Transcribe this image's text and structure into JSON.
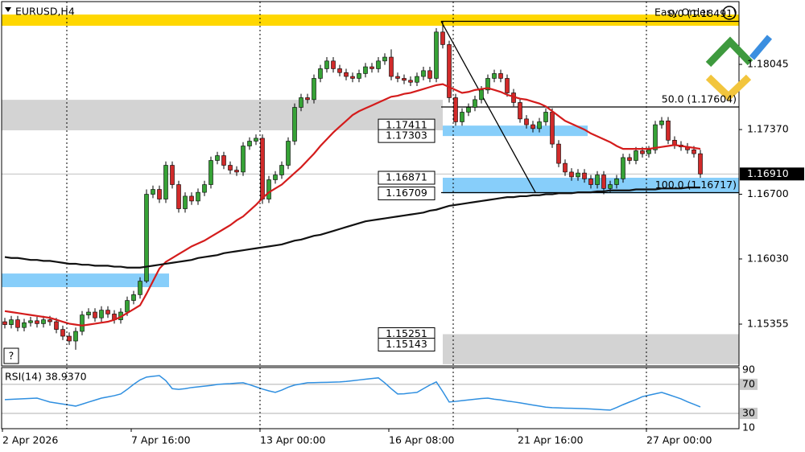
{
  "chart_data": {
    "type": "candlestick",
    "symbol": "EURUSD,H4",
    "corner_text": "Easy Order",
    "up_color": "#36a236",
    "down_color": "#d12a2a",
    "ylim": [
      1.14922,
      1.18695
    ],
    "yticks": [
      1.18045,
      {
        "value": 1.1737,
        "label": "1.17370"
      },
      {
        "value": 1.167,
        "label": "1.16700"
      },
      {
        "value": 1.1603,
        "label": "1.16030"
      },
      1.15355
    ],
    "bid": {
      "value": 1.1691,
      "label": "1.16910"
    },
    "categories": [
      "2 Apr 2026",
      null,
      null,
      null,
      null,
      null,
      null,
      null,
      null,
      null,
      null,
      null,
      null,
      null,
      null,
      null,
      null,
      null,
      null,
      null,
      "7 Apr 16:00",
      null,
      null,
      null,
      null,
      null,
      null,
      null,
      null,
      null,
      null,
      null,
      null,
      null,
      null,
      null,
      null,
      null,
      null,
      null,
      "13 Apr 00:00",
      null,
      null,
      null,
      null,
      null,
      null,
      null,
      null,
      null,
      null,
      null,
      null,
      null,
      null,
      null,
      null,
      null,
      null,
      null,
      "16 Apr 08:00",
      null,
      null,
      null,
      null,
      null,
      null,
      null,
      null,
      null,
      null,
      null,
      null,
      null,
      null,
      null,
      null,
      null,
      null,
      null,
      "21 Apr 16:00",
      null,
      null,
      null,
      null,
      null,
      null,
      null,
      null,
      null,
      null,
      null,
      null,
      null,
      null,
      null,
      null,
      null,
      null,
      null,
      "27 Apr 00:00",
      null,
      null,
      null,
      null,
      null,
      null,
      null,
      null
    ],
    "candles": [
      [
        1.1538,
        1.1542,
        1.1531,
        1.1535
      ],
      [
        1.1535,
        1.1544,
        1.1531,
        1.154
      ],
      [
        1.154,
        1.1544,
        1.1528,
        1.1532
      ],
      [
        1.1532,
        1.1541,
        1.1528,
        1.1537
      ],
      [
        1.1537,
        1.1543,
        1.1533,
        1.1539
      ],
      [
        1.1539,
        1.1543,
        1.1532,
        1.1536
      ],
      [
        1.1536,
        1.1544,
        1.1532,
        1.154
      ],
      [
        1.154,
        1.1544,
        1.1534,
        1.1538
      ],
      [
        1.1538,
        1.1542,
        1.1526,
        1.153
      ],
      [
        1.153,
        1.1534,
        1.1519,
        1.1523
      ],
      [
        1.1523,
        1.1527,
        1.1514,
        1.1518
      ],
      [
        1.1518,
        1.1532,
        1.1509,
        1.1528
      ],
      [
        1.1528,
        1.1549,
        1.1524,
        1.1545
      ],
      [
        1.1545,
        1.1552,
        1.1541,
        1.1548
      ],
      [
        1.1548,
        1.1552,
        1.1538,
        1.1542
      ],
      [
        1.1542,
        1.1554,
        1.1538,
        1.155
      ],
      [
        1.155,
        1.1554,
        1.1542,
        1.1546
      ],
      [
        1.1546,
        1.155,
        1.1536,
        1.154
      ],
      [
        1.154,
        1.1552,
        1.1536,
        1.1548
      ],
      [
        1.1548,
        1.1564,
        1.1544,
        1.156
      ],
      [
        1.156,
        1.157,
        1.1556,
        1.1566
      ],
      [
        1.1566,
        1.1584,
        1.1562,
        1.158
      ],
      [
        1.158,
        1.1675,
        1.1578,
        1.167
      ],
      [
        1.167,
        1.1679,
        1.1666,
        1.1675
      ],
      [
        1.1675,
        1.1679,
        1.1661,
        1.1665
      ],
      [
        1.1665,
        1.1704,
        1.1661,
        1.17
      ],
      [
        1.17,
        1.1704,
        1.1676,
        1.168
      ],
      [
        1.168,
        1.1684,
        1.1651,
        1.1655
      ],
      [
        1.1655,
        1.1672,
        1.1651,
        1.1668
      ],
      [
        1.1668,
        1.1672,
        1.1659,
        1.1663
      ],
      [
        1.1663,
        1.1676,
        1.1659,
        1.1672
      ],
      [
        1.1672,
        1.1684,
        1.1668,
        1.168
      ],
      [
        1.168,
        1.1709,
        1.1676,
        1.1705
      ],
      [
        1.1705,
        1.1714,
        1.1701,
        1.171
      ],
      [
        1.171,
        1.1714,
        1.1696,
        1.17
      ],
      [
        1.17,
        1.1704,
        1.1691,
        1.1695
      ],
      [
        1.1695,
        1.1699,
        1.1689,
        1.1693
      ],
      [
        1.1693,
        1.1724,
        1.1689,
        1.172
      ],
      [
        1.172,
        1.1729,
        1.1716,
        1.1725
      ],
      [
        1.1725,
        1.1732,
        1.1721,
        1.1728
      ],
      [
        1.1728,
        1.1732,
        1.166,
        1.1665
      ],
      [
        1.1665,
        1.1689,
        1.1661,
        1.1685
      ],
      [
        1.1685,
        1.1694,
        1.1681,
        1.169
      ],
      [
        1.169,
        1.1704,
        1.1686,
        1.17
      ],
      [
        1.17,
        1.1729,
        1.1696,
        1.1725
      ],
      [
        1.1725,
        1.1764,
        1.1721,
        1.176
      ],
      [
        1.176,
        1.1774,
        1.1756,
        1.177
      ],
      [
        1.177,
        1.1774,
        1.1764,
        1.1768
      ],
      [
        1.1768,
        1.1794,
        1.1764,
        1.179
      ],
      [
        1.179,
        1.1804,
        1.1786,
        1.18
      ],
      [
        1.18,
        1.1812,
        1.1796,
        1.1808
      ],
      [
        1.1808,
        1.1812,
        1.1796,
        1.18
      ],
      [
        1.18,
        1.1804,
        1.1792,
        1.1796
      ],
      [
        1.1796,
        1.18,
        1.1788,
        1.1792
      ],
      [
        1.1792,
        1.1796,
        1.1786,
        1.179
      ],
      [
        1.179,
        1.1799,
        1.1786,
        1.1795
      ],
      [
        1.1795,
        1.1806,
        1.1791,
        1.1802
      ],
      [
        1.1802,
        1.1806,
        1.1796,
        1.18
      ],
      [
        1.18,
        1.1812,
        1.1796,
        1.1808
      ],
      [
        1.1808,
        1.1816,
        1.1804,
        1.1812
      ],
      [
        1.1812,
        1.182,
        1.1788,
        1.1792
      ],
      [
        1.1792,
        1.1796,
        1.1786,
        1.179
      ],
      [
        1.179,
        1.1794,
        1.1784,
        1.1788
      ],
      [
        1.1788,
        1.1792,
        1.1782,
        1.1786
      ],
      [
        1.1786,
        1.1796,
        1.1782,
        1.1792
      ],
      [
        1.1792,
        1.1802,
        1.1788,
        1.1798
      ],
      [
        1.1798,
        1.1802,
        1.1786,
        1.179
      ],
      [
        1.179,
        1.1842,
        1.1786,
        1.1838
      ],
      [
        1.1838,
        1.18491,
        1.1821,
        1.1825
      ],
      [
        1.1825,
        1.1829,
        1.1765,
        1.177
      ],
      [
        1.177,
        1.1774,
        1.1741,
        1.1745
      ],
      [
        1.1745,
        1.1759,
        1.1741,
        1.1755
      ],
      [
        1.1755,
        1.1764,
        1.1751,
        1.176
      ],
      [
        1.176,
        1.1772,
        1.1756,
        1.1768
      ],
      [
        1.1768,
        1.1782,
        1.1764,
        1.1778
      ],
      [
        1.1778,
        1.1794,
        1.1774,
        1.179
      ],
      [
        1.179,
        1.1799,
        1.1786,
        1.1795
      ],
      [
        1.1795,
        1.1799,
        1.1786,
        1.179
      ],
      [
        1.179,
        1.1794,
        1.1771,
        1.1775
      ],
      [
        1.1775,
        1.1779,
        1.1761,
        1.1765
      ],
      [
        1.1765,
        1.1769,
        1.1744,
        1.1748
      ],
      [
        1.1748,
        1.1752,
        1.1738,
        1.1742
      ],
      [
        1.1742,
        1.1746,
        1.1734,
        1.1738
      ],
      [
        1.1738,
        1.1749,
        1.1734,
        1.1745
      ],
      [
        1.1745,
        1.1759,
        1.1741,
        1.1755
      ],
      [
        1.1755,
        1.1759,
        1.1718,
        1.1722
      ],
      [
        1.1722,
        1.1726,
        1.1698,
        1.1702
      ],
      [
        1.1702,
        1.1706,
        1.1689,
        1.1693
      ],
      [
        1.1693,
        1.1697,
        1.1684,
        1.1688
      ],
      [
        1.1688,
        1.1696,
        1.1684,
        1.1692
      ],
      [
        1.1692,
        1.1696,
        1.1682,
        1.1686
      ],
      [
        1.1686,
        1.169,
        1.1676,
        1.168
      ],
      [
        1.168,
        1.1694,
        1.1676,
        1.169
      ],
      [
        1.169,
        1.1694,
        1.167,
        1.1676
      ],
      [
        1.1676,
        1.1684,
        1.1672,
        1.168
      ],
      [
        1.168,
        1.169,
        1.1676,
        1.1686
      ],
      [
        1.1686,
        1.1712,
        1.1682,
        1.1708
      ],
      [
        1.1708,
        1.1712,
        1.1701,
        1.1705
      ],
      [
        1.1705,
        1.1719,
        1.1701,
        1.1715
      ],
      [
        1.1715,
        1.1719,
        1.1708,
        1.1712
      ],
      [
        1.1712,
        1.172,
        1.1708,
        1.1716
      ],
      [
        1.1716,
        1.1746,
        1.1712,
        1.1742
      ],
      [
        1.1742,
        1.175,
        1.1738,
        1.1746
      ],
      [
        1.1746,
        1.175,
        1.1722,
        1.1726
      ],
      [
        1.1726,
        1.173,
        1.1717,
        1.1721
      ],
      [
        1.1721,
        1.1725,
        1.1715,
        1.1719
      ],
      [
        1.1719,
        1.1723,
        1.1712,
        1.1716
      ],
      [
        1.1716,
        1.172,
        1.1708,
        1.1712
      ],
      [
        1.1712,
        1.1716,
        1.1687,
        1.1691
      ]
    ],
    "lines": [
      {
        "color": "#d41c1c",
        "values": [
          1.1549,
          1.1548,
          1.1547,
          1.1546,
          1.1545,
          1.1544,
          1.1543,
          1.1542,
          1.154,
          1.1538,
          1.1536,
          1.1535,
          1.1534,
          1.1535,
          1.1536,
          1.1537,
          1.1538,
          1.154,
          1.1543,
          1.1547,
          1.1551,
          1.1555,
          1.1567,
          1.158,
          1.1593,
          1.16,
          1.1604,
          1.1608,
          1.1612,
          1.1616,
          1.1619,
          1.1622,
          1.1626,
          1.163,
          1.1634,
          1.1638,
          1.1643,
          1.1647,
          1.1653,
          1.1659,
          1.1666,
          1.1672,
          1.1676,
          1.168,
          1.1686,
          1.1692,
          1.1698,
          1.1705,
          1.1712,
          1.172,
          1.1727,
          1.1734,
          1.174,
          1.1746,
          1.1752,
          1.1756,
          1.1759,
          1.1762,
          1.1765,
          1.1768,
          1.1771,
          1.1772,
          1.1774,
          1.1775,
          1.1777,
          1.1779,
          1.1781,
          1.1783,
          1.1784,
          1.1781,
          1.1778,
          1.1775,
          1.1776,
          1.1778,
          1.1779,
          1.178,
          1.1778,
          1.1776,
          1.1773,
          1.1771,
          1.1769,
          1.1768,
          1.1766,
          1.1764,
          1.1761,
          1.1756,
          1.1751,
          1.1746,
          1.1743,
          1.174,
          1.1737,
          1.1733,
          1.173,
          1.1727,
          1.1724,
          1.172,
          1.1717,
          1.1717,
          1.1717,
          1.1717,
          1.1717,
          1.1718,
          1.1719,
          1.172,
          1.1721,
          1.172,
          1.1719,
          1.1718,
          1.1717
        ]
      },
      {
        "color": "#111111",
        "values": [
          1.1605,
          1.1604,
          1.1604,
          1.1603,
          1.1602,
          1.1602,
          1.1601,
          1.1601,
          1.16,
          1.1599,
          1.1598,
          1.1598,
          1.1597,
          1.1597,
          1.1596,
          1.1596,
          1.1596,
          1.1595,
          1.1595,
          1.1594,
          1.1594,
          1.1594,
          1.1595,
          1.1596,
          1.1597,
          1.1598,
          1.1599,
          1.16,
          1.1601,
          1.1602,
          1.1604,
          1.1605,
          1.1606,
          1.1607,
          1.1609,
          1.161,
          1.1611,
          1.1612,
          1.1613,
          1.1614,
          1.1615,
          1.1616,
          1.1617,
          1.1618,
          1.162,
          1.1622,
          1.1623,
          1.1625,
          1.1627,
          1.1628,
          1.163,
          1.1632,
          1.1634,
          1.1636,
          1.1638,
          1.164,
          1.1642,
          1.1643,
          1.1644,
          1.1645,
          1.1646,
          1.1647,
          1.1648,
          1.1649,
          1.165,
          1.1651,
          1.1653,
          1.1654,
          1.1656,
          1.1658,
          1.1659,
          1.166,
          1.1661,
          1.1662,
          1.1663,
          1.1664,
          1.1665,
          1.1666,
          1.1667,
          1.1667,
          1.1668,
          1.1668,
          1.1669,
          1.1669,
          1.167,
          1.167,
          1.1671,
          1.1671,
          1.1671,
          1.1672,
          1.1672,
          1.1672,
          1.1673,
          1.1673,
          1.1674,
          1.1674,
          1.1674,
          1.1674,
          1.1675,
          1.1675,
          1.1675,
          1.1675,
          1.1676,
          1.1676,
          1.1676,
          1.1676,
          1.1677,
          1.1677,
          1.1677
        ]
      }
    ],
    "zones": [
      {
        "top": 1.18561,
        "bottom": 1.18445,
        "color": "#ffd700"
      },
      {
        "top": 1.17678,
        "bottom": 1.17362,
        "color": "#d3d3d3"
      },
      {
        "top": 1.15879,
        "bottom": 1.15738,
        "color": "#87cefa"
      },
      {
        "top": 1.17411,
        "bottom": 1.17303,
        "color": "#87cefa"
      },
      {
        "top": 1.16871,
        "bottom": 1.16709,
        "color": "#87cefa"
      },
      {
        "top": 1.15251,
        "bottom": 1.1494,
        "color": "#d3d3d3"
      }
    ],
    "price_labels": [
      1.17411,
      1.17303,
      1.16871,
      1.16709,
      1.15251,
      1.15143
    ],
    "fib": {
      "levels": [
        {
          "value": 1.18491,
          "label": "0.0 (1.18491)"
        },
        {
          "value": 1.17604,
          "label": "50.0 (1.17604)"
        },
        {
          "value": 1.16717,
          "label": "100.0 (1.16717)"
        }
      ]
    },
    "rsi": {
      "title": "RSI(14) 38.9370",
      "color": "#2f8fe0",
      "ylim": [
        10,
        92
      ],
      "yticks": [
        90,
        70,
        30,
        10
      ],
      "levels": [
        70,
        30
      ],
      "values": [
        48.9,
        49.3,
        49.7,
        50.2,
        50.6,
        51.0,
        48.3,
        45.6,
        44.2,
        42.8,
        41.4,
        40.0,
        42.7,
        45.5,
        48.2,
        51.0,
        52.7,
        54.4,
        56.7,
        63.0,
        70.0,
        76.0,
        80.0,
        81.0,
        82.0,
        75.0,
        64.0,
        63.0,
        64.0,
        65.6,
        66.5,
        67.5,
        68.5,
        69.8,
        70.5,
        71.0,
        71.7,
        72.2,
        69.5,
        66.5,
        63.5,
        61.0,
        58.9,
        62.0,
        66.0,
        69.0,
        70.5,
        72.2,
        72.4,
        72.6,
        72.8,
        73.0,
        73.3,
        74.0,
        75.0,
        76.0,
        77.0,
        78.0,
        78.9,
        72.0,
        64.0,
        56.7,
        57.0,
        58.0,
        58.9,
        64.0,
        69.0,
        73.3,
        60.0,
        45.6,
        46.5,
        47.5,
        48.5,
        49.5,
        50.5,
        51.0,
        49.5,
        48.5,
        47.0,
        45.8,
        44.5,
        43.0,
        41.5,
        40.0,
        38.5,
        37.8,
        37.5,
        37.2,
        37.0,
        36.8,
        36.5,
        36.0,
        35.5,
        35.0,
        34.5,
        38.0,
        42.0,
        45.6,
        49.0,
        53.0,
        55.0,
        57.0,
        58.9,
        56.0,
        53.0,
        50.0,
        46.0,
        42.5,
        38.937
      ]
    }
  }
}
